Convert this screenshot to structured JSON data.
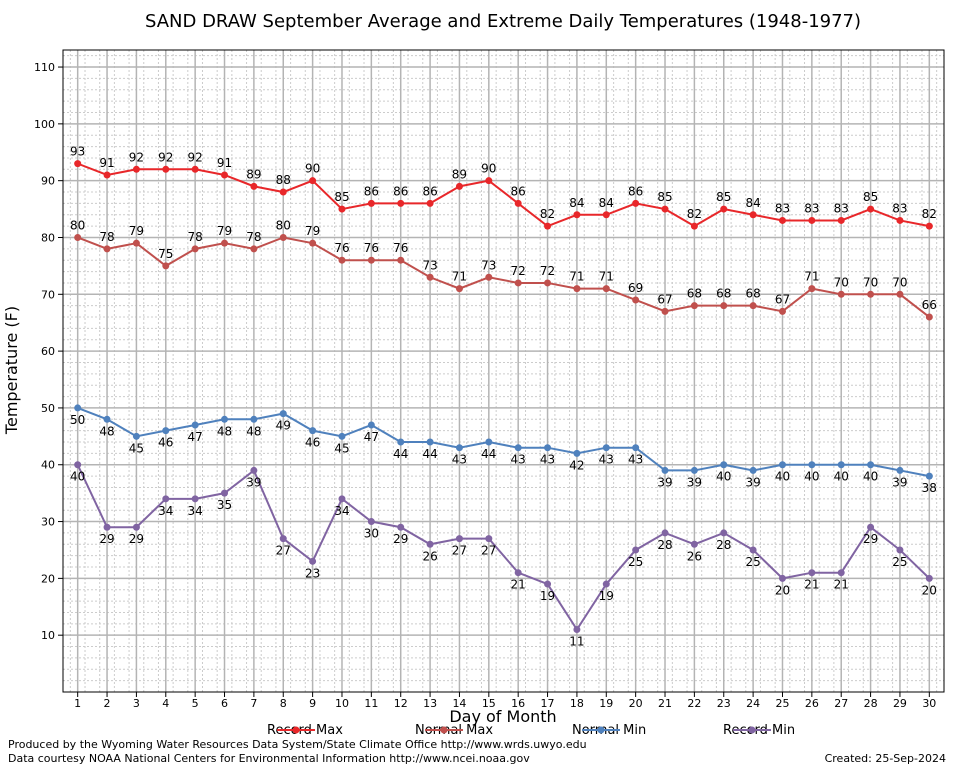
{
  "chart_data": {
    "type": "line",
    "title": "SAND DRAW September Average and Extreme Daily Temperatures (1948-1977)",
    "xlabel": "Day of Month",
    "ylabel": "Temperature (F)",
    "ylim": [
      0,
      113
    ],
    "yticks": [
      10,
      20,
      30,
      40,
      50,
      60,
      70,
      80,
      90,
      100,
      110
    ],
    "x": [
      1,
      2,
      3,
      4,
      5,
      6,
      7,
      8,
      9,
      10,
      11,
      12,
      13,
      14,
      15,
      16,
      17,
      18,
      19,
      20,
      21,
      22,
      23,
      24,
      25,
      26,
      27,
      28,
      29,
      30
    ],
    "grid": true,
    "legend_position": "bottom",
    "series": [
      {
        "name": "Record Max",
        "color": "#e8272a",
        "label_position": "above",
        "values": [
          93,
          91,
          92,
          92,
          92,
          91,
          89,
          88,
          90,
          85,
          86,
          86,
          86,
          89,
          90,
          86,
          82,
          84,
          84,
          86,
          85,
          82,
          85,
          84,
          83,
          83,
          83,
          85,
          83,
          82
        ]
      },
      {
        "name": "Normal Max",
        "color": "#c0504d",
        "label_position": "above",
        "values": [
          80,
          78,
          79,
          75,
          78,
          79,
          78,
          80,
          79,
          76,
          76,
          76,
          73,
          71,
          73,
          72,
          72,
          71,
          71,
          69,
          67,
          68,
          68,
          68,
          67,
          71,
          70,
          70,
          70,
          66
        ]
      },
      {
        "name": "Normal Min",
        "color": "#4f81bd",
        "label_position": "below",
        "values": [
          50,
          48,
          45,
          46,
          47,
          48,
          48,
          49,
          46,
          45,
          47,
          44,
          44,
          43,
          44,
          43,
          43,
          42,
          43,
          43,
          39,
          39,
          40,
          39,
          40,
          40,
          40,
          40,
          39,
          38
        ]
      },
      {
        "name": "Record Min",
        "color": "#8064a2",
        "label_position": "below",
        "values": [
          40,
          29,
          29,
          34,
          34,
          35,
          39,
          27,
          23,
          34,
          30,
          29,
          26,
          27,
          27,
          21,
          19,
          11,
          19,
          25,
          28,
          26,
          28,
          25,
          20,
          21,
          21,
          29,
          25,
          20
        ]
      }
    ]
  },
  "footer": {
    "produced_by": "Produced by the Wyoming Water Resources Data System/State Climate Office http://www.wrds.uwyo.edu",
    "data_courtesy": "Data courtesy NOAA National Centers for Environmental Information http://www.ncei.noaa.gov",
    "created": "Created:  25-Sep-2024"
  }
}
